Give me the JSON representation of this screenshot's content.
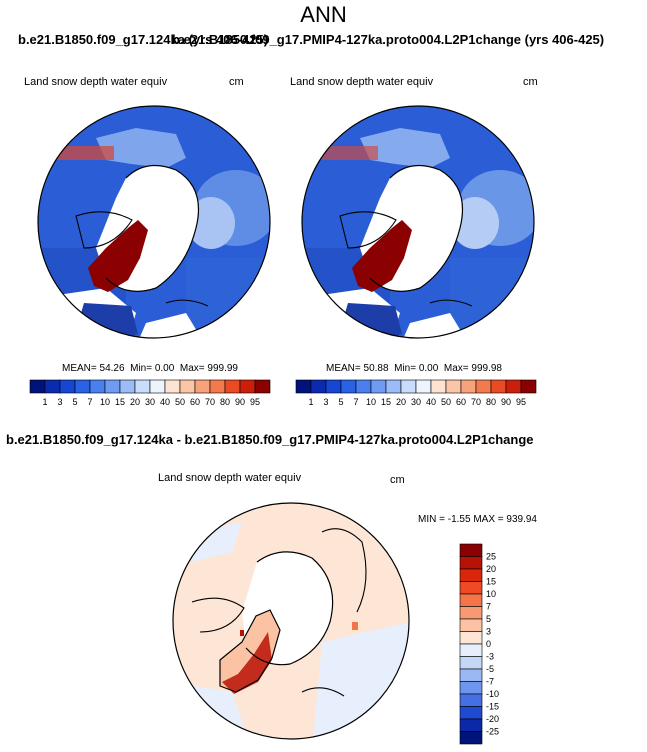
{
  "title": "ANN",
  "top_header_left": "b.e21.B1850.f09_g17.124ka (yrs 406-425)",
  "top_header_right": "b.e21.B1850.f09_g17.PMIP4-127ka.proto004.L2P1change (yrs 406-425)",
  "panels": [
    {
      "variable_label": "Land snow depth water equiv",
      "units": "cm",
      "stats": {
        "mean": "54.26",
        "min": "0.00",
        "max": "999.99"
      }
    },
    {
      "variable_label": "Land snow depth water equiv",
      "units": "cm",
      "stats": {
        "mean": "50.88",
        "min": "0.00",
        "max": "999.98"
      }
    }
  ],
  "stat_labels": {
    "mean": "MEAN=",
    "min": "Min=",
    "max": "Max="
  },
  "colorbar": {
    "ticks": [
      "1",
      "3",
      "5",
      "7",
      "10",
      "15",
      "20",
      "30",
      "40",
      "50",
      "60",
      "70",
      "80",
      "90",
      "95"
    ],
    "colors": [
      "#00137a",
      "#0a2bb0",
      "#1646d4",
      "#2a62e6",
      "#4a7fef",
      "#6f9cf3",
      "#9bbcf6",
      "#c9dcfa",
      "#eef4fd",
      "#fde3d2",
      "#fbc5a8",
      "#f7a27a",
      "#f47a4e",
      "#ea4b24",
      "#cc1f0b",
      "#8b0000"
    ]
  },
  "diff": {
    "header": "b.e21.B1850.f09_g17.124ka - b.e21.B1850.f09_g17.PMIP4-127ka.proto004.L2P1change",
    "variable_label": "Land snow depth water equiv",
    "units": "cm",
    "min_label": "MIN =",
    "min": "-1.55",
    "max_label": "MAX =",
    "max": "939.94",
    "colorbar": {
      "ticks": [
        "25",
        "20",
        "15",
        "10",
        "7",
        "5",
        "3",
        "0",
        "-3",
        "-5",
        "-7",
        "-10",
        "-15",
        "-20",
        "-25"
      ],
      "colors": [
        "#8b0000",
        "#b81206",
        "#d9270e",
        "#ee4a24",
        "#f4744a",
        "#f79a74",
        "#fbc3a3",
        "#fde6d6",
        "#e6effb",
        "#c4d7f7",
        "#9ab8f3",
        "#6e96ee",
        "#4470e4",
        "#1f4ad2",
        "#0b28a8",
        "#00137a"
      ]
    }
  }
}
